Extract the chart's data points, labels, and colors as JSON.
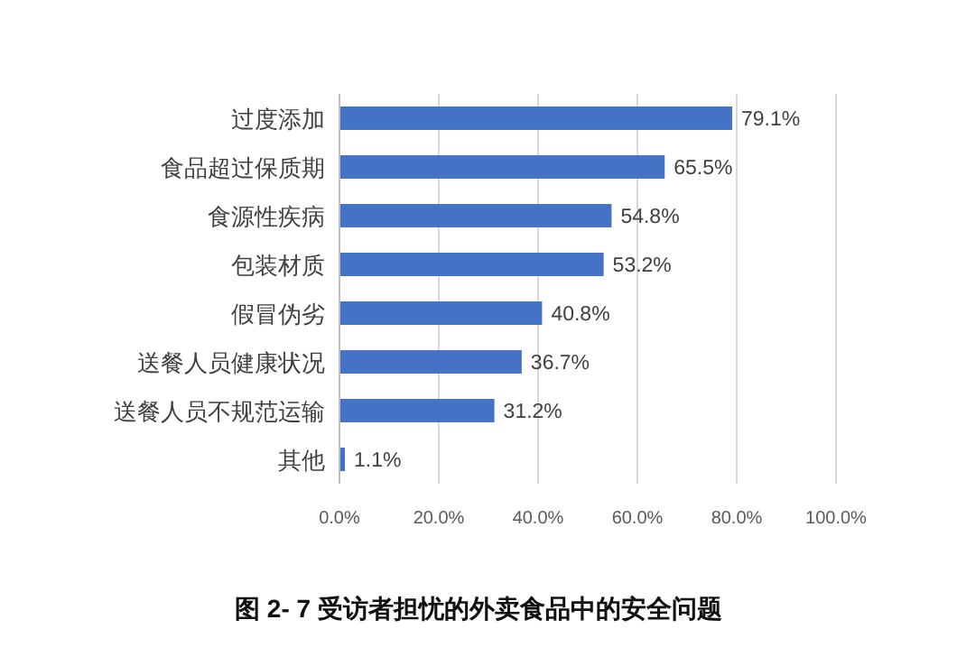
{
  "chart_data": {
    "type": "bar",
    "orientation": "horizontal",
    "title": "图 2- 7 受访者担忧的外卖食品中的安全问题",
    "categories": [
      "过度添加",
      "食品超过保质期",
      "食源性疾病",
      "包装材质",
      "假冒伪劣",
      "送餐人员健康状况",
      "送餐人员不规范运输",
      "其他"
    ],
    "values": [
      79.1,
      65.5,
      54.8,
      53.2,
      40.8,
      36.7,
      31.2,
      1.1
    ],
    "value_labels": [
      "79.1%",
      "65.5%",
      "54.8%",
      "53.2%",
      "40.8%",
      "36.7%",
      "31.2%",
      "1.1%"
    ],
    "color": "#4472c4",
    "xlim": [
      0,
      100
    ],
    "xticks": [
      {
        "value": 0,
        "label": "0.0%"
      },
      {
        "value": 20,
        "label": "20.0%"
      },
      {
        "value": 40,
        "label": "40.0%"
      },
      {
        "value": 60,
        "label": "60.0%"
      },
      {
        "value": 80,
        "label": "80.0%"
      },
      {
        "value": 100,
        "label": "100.0%"
      }
    ],
    "grid": "x"
  }
}
